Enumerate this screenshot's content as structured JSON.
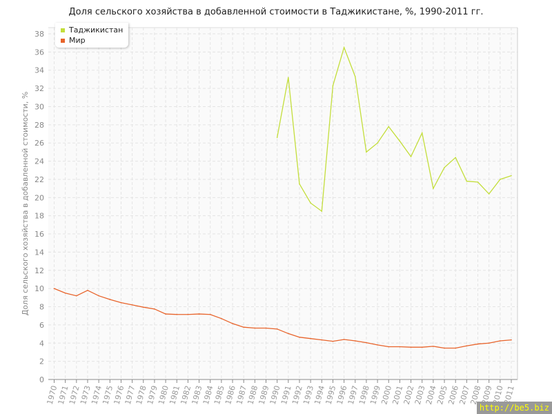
{
  "chart_data": {
    "type": "line",
    "title": "Доля сельского хозяйства в добавленной стоимости в Таджикистане, %, 1990-2011 гг.",
    "xlabel": "",
    "ylabel": "Доля сельского хозяйства в добавленной стоимости, %",
    "ylim": [
      0,
      38
    ],
    "yticks": [
      0,
      2,
      4,
      6,
      8,
      10,
      12,
      14,
      16,
      18,
      20,
      22,
      24,
      26,
      28,
      30,
      32,
      34,
      36,
      38
    ],
    "x": [
      1970,
      1971,
      1972,
      1973,
      1974,
      1975,
      1976,
      1977,
      1978,
      1979,
      1980,
      1981,
      1982,
      1983,
      1984,
      1985,
      1986,
      1987,
      1988,
      1989,
      1990,
      1991,
      1992,
      1993,
      1994,
      1995,
      1996,
      1997,
      1998,
      1999,
      2000,
      2001,
      2002,
      2003,
      2004,
      2005,
      2006,
      2007,
      2008,
      2009,
      2010,
      2011
    ],
    "grid": true,
    "legend": "top-left",
    "series": [
      {
        "name": "Таджикистан",
        "color": "#c3de3a",
        "values": [
          null,
          null,
          null,
          null,
          null,
          null,
          null,
          null,
          null,
          null,
          null,
          null,
          null,
          null,
          null,
          null,
          null,
          null,
          null,
          null,
          26.6,
          33.2,
          21.5,
          19.4,
          18.5,
          32.3,
          36.5,
          33.3,
          25.0,
          26.0,
          27.8,
          26.2,
          24.5,
          27.1,
          21.0,
          23.3,
          24.4,
          21.8,
          21.7,
          20.4,
          22.0,
          22.4
        ]
      },
      {
        "name": "Мир",
        "color": "#e8632a",
        "values": [
          10.0,
          9.5,
          9.2,
          9.8,
          9.2,
          8.8,
          8.45,
          8.2,
          7.95,
          7.75,
          7.2,
          7.15,
          7.15,
          7.2,
          7.15,
          6.7,
          6.15,
          5.75,
          5.65,
          5.65,
          5.55,
          5.05,
          4.65,
          4.5,
          4.35,
          4.2,
          4.4,
          4.25,
          4.05,
          3.8,
          3.6,
          3.6,
          3.55,
          3.55,
          3.65,
          3.45,
          3.45,
          3.7,
          3.9,
          4.0,
          4.25,
          4.35
        ]
      }
    ]
  },
  "watermark": "http://be5.biz"
}
